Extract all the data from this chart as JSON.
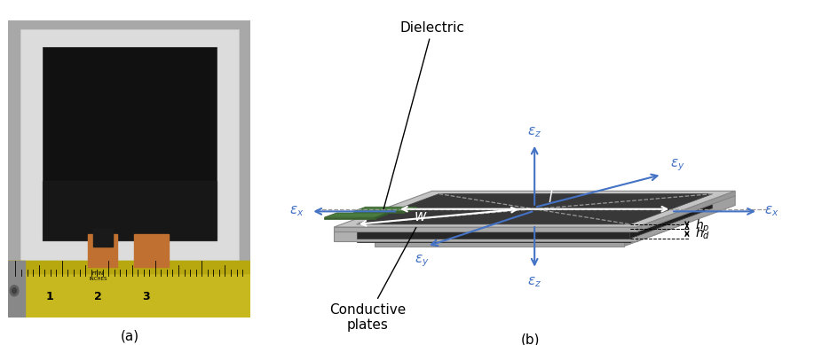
{
  "fig_width": 9.26,
  "fig_height": 3.89,
  "bg_color": "#ffffff",
  "label_a": "(a)",
  "label_b": "(b)",
  "dielectric_label": "Dielectric",
  "conductive_label": "Conductive\nplates",
  "blue": "#4472c4",
  "white": "#ffffff",
  "black": "#000000",
  "light_gray": "#c8c8c8",
  "mid_gray": "#b0b0b0",
  "dark_gray": "#3c3c3c",
  "darker_gray": "#2a2a2a",
  "black_plate": "#181818",
  "green": "#4a7c3f",
  "green_dark": "#3a6030",
  "note_fontsize": 10,
  "label_fontsize": 11
}
